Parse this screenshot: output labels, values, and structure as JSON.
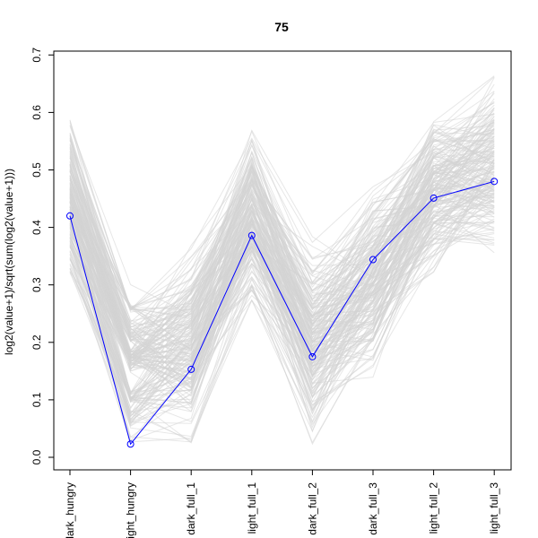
{
  "chart_data": {
    "type": "line",
    "title": "75",
    "xlabel": "",
    "ylabel": "log2(value+1)/sqrt(sum(log2(value+1)))",
    "categories": [
      "dark_hungry",
      "light_hungry",
      "dark_full_1",
      "light_full_1",
      "dark_full_2",
      "dark_full_3",
      "light_full_2",
      "light_full_3"
    ],
    "x_tick_labels": [
      "dark_hungry",
      "light_hungry",
      "dark_full_1",
      "light_full_1",
      "dark_full_2",
      "dark_full_3",
      "light_full_2",
      "light_full_3"
    ],
    "y_ticks": [
      "0.0",
      "0.1",
      "0.2",
      "0.3",
      "0.4",
      "0.5",
      "0.6",
      "0.7"
    ],
    "ylim": [
      0,
      0.7
    ],
    "grid": false,
    "series": [
      {
        "values": [
          0.42,
          0.023,
          0.153,
          0.386,
          0.175,
          0.344,
          0.451,
          0.48
        ],
        "color": "#0000ff",
        "marker": "open-circle"
      }
    ],
    "background_series": {
      "color": "#d3d3d3",
      "count": 200,
      "range_min": [
        0.29,
        0.0,
        0.0,
        0.25,
        0.0,
        0.12,
        0.3,
        0.33
      ],
      "range_max": [
        0.6,
        0.32,
        0.39,
        0.59,
        0.4,
        0.49,
        0.6,
        0.68
      ]
    }
  }
}
